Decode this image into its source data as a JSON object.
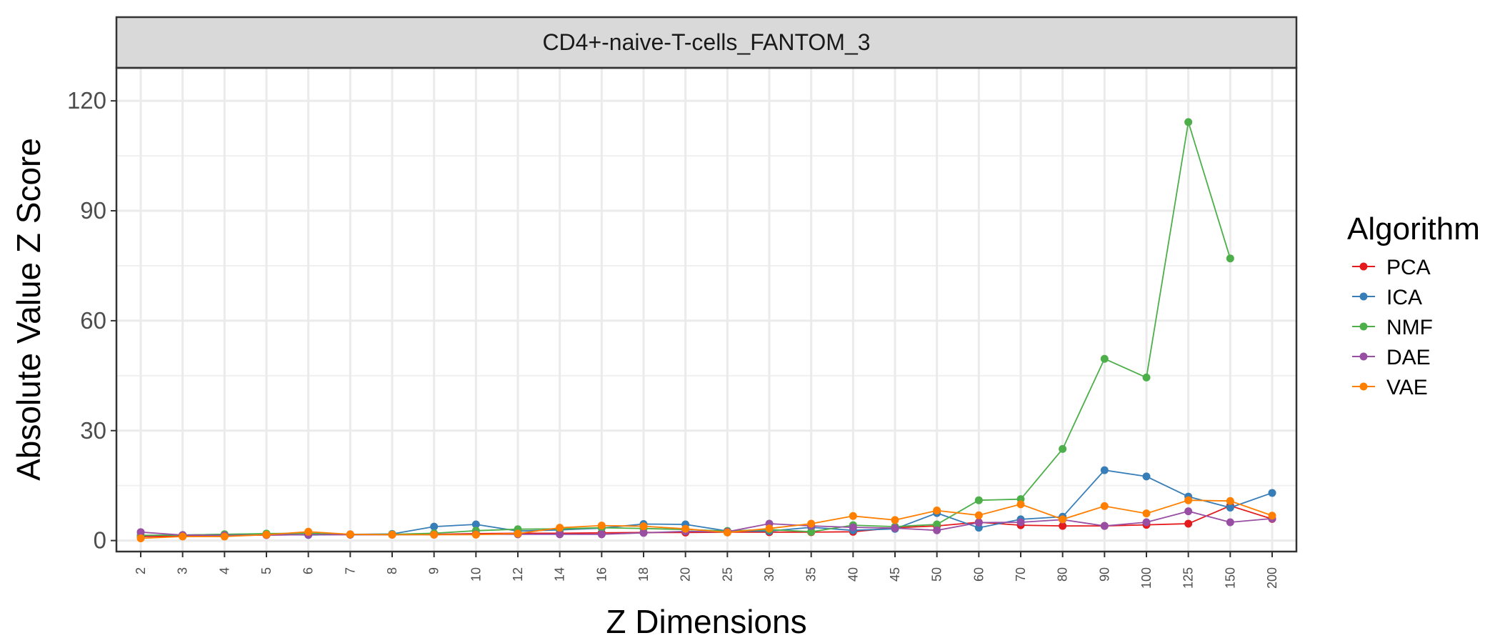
{
  "chart_data": {
    "type": "line",
    "panel_title": "CD4+-naive-T-cells_FANTOM_3",
    "xlabel": "Z Dimensions",
    "ylabel": "Absolute Value Z Score",
    "ylim": [
      -3,
      129
    ],
    "yticks": [
      0,
      30,
      60,
      90,
      120
    ],
    "grid": true,
    "legend_title": "Algorithm",
    "legend_position": "right",
    "categories": [
      "2",
      "3",
      "4",
      "5",
      "6",
      "7",
      "8",
      "9",
      "10",
      "12",
      "14",
      "16",
      "18",
      "20",
      "25",
      "30",
      "35",
      "40",
      "45",
      "50",
      "60",
      "70",
      "80",
      "90",
      "100",
      "125",
      "150",
      "200"
    ],
    "series": [
      {
        "name": "PCA",
        "color": "#e41a1c",
        "values": [
          1.1,
          1.2,
          1.3,
          1.5,
          1.6,
          1.6,
          1.6,
          1.7,
          1.9,
          2.0,
          2.0,
          2.1,
          2.2,
          2.2,
          2.3,
          2.3,
          2.3,
          2.4,
          3.5,
          4.0,
          5.0,
          4.2,
          4.0,
          4.0,
          4.3,
          4.6,
          9.5,
          5.9
        ]
      },
      {
        "name": "ICA",
        "color": "#377eb8",
        "values": [
          1.4,
          1.5,
          1.7,
          1.8,
          1.5,
          1.7,
          1.8,
          3.8,
          4.4,
          2.6,
          2.9,
          3.4,
          4.5,
          4.4,
          2.6,
          2.6,
          3.6,
          2.8,
          3.2,
          7.5,
          3.5,
          5.8,
          6.5,
          19.2,
          17.5,
          12.0,
          9.0,
          13.0
        ]
      },
      {
        "name": "NMF",
        "color": "#4daf4a",
        "values": [
          1.4,
          1.5,
          1.7,
          1.9,
          2.0,
          1.6,
          1.7,
          2.0,
          2.7,
          3.1,
          3.2,
          3.5,
          3.3,
          3.0,
          2.6,
          3.0,
          2.4,
          4.2,
          3.8,
          4.4,
          11.0,
          11.3,
          25.0,
          49.6,
          44.5,
          114.2,
          77.0,
          null
        ]
      },
      {
        "name": "DAE",
        "color": "#984ea3",
        "values": [
          2.3,
          1.5,
          1.4,
          1.5,
          1.6,
          1.6,
          1.6,
          1.6,
          1.7,
          1.7,
          1.7,
          1.7,
          2.1,
          2.5,
          2.4,
          4.6,
          4.0,
          3.6,
          3.4,
          2.8,
          4.9,
          5.0,
          5.7,
          4.0,
          5.0,
          8.0,
          5.0,
          6.0
        ]
      },
      {
        "name": "VAE",
        "color": "#ff7f00",
        "values": [
          0.6,
          1.1,
          1.1,
          1.6,
          2.4,
          1.7,
          1.6,
          1.6,
          1.6,
          1.9,
          3.5,
          4.1,
          3.9,
          3.2,
          2.2,
          3.3,
          4.6,
          6.7,
          5.6,
          8.2,
          6.9,
          9.9,
          5.8,
          9.4,
          7.4,
          11.0,
          10.8,
          6.8
        ]
      }
    ]
  }
}
